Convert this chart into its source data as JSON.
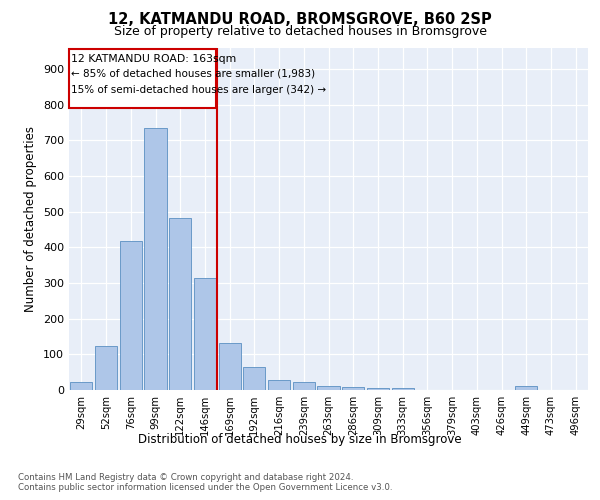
{
  "title1": "12, KATMANDU ROAD, BROMSGROVE, B60 2SP",
  "title2": "Size of property relative to detached houses in Bromsgrove",
  "xlabel": "Distribution of detached houses by size in Bromsgrove",
  "ylabel": "Number of detached properties",
  "categories": [
    "29sqm",
    "52sqm",
    "76sqm",
    "99sqm",
    "122sqm",
    "146sqm",
    "169sqm",
    "192sqm",
    "216sqm",
    "239sqm",
    "263sqm",
    "286sqm",
    "309sqm",
    "333sqm",
    "356sqm",
    "379sqm",
    "403sqm",
    "426sqm",
    "449sqm",
    "473sqm",
    "496sqm"
  ],
  "values": [
    22,
    122,
    418,
    735,
    482,
    315,
    133,
    65,
    28,
    22,
    12,
    8,
    5,
    5,
    0,
    0,
    0,
    0,
    10,
    0,
    0
  ],
  "bar_color": "#aec6e8",
  "bar_edge_color": "#5a8fc2",
  "vline_x": 5.5,
  "vline_color": "#cc0000",
  "annotation_title": "12 KATMANDU ROAD: 163sqm",
  "annotation_line1": "← 85% of detached houses are smaller (1,983)",
  "annotation_line2": "15% of semi-detached houses are larger (342) →",
  "annotation_box_color": "#cc0000",
  "ylim": [
    0,
    960
  ],
  "yticks": [
    0,
    100,
    200,
    300,
    400,
    500,
    600,
    700,
    800,
    900
  ],
  "footer1": "Contains HM Land Registry data © Crown copyright and database right 2024.",
  "footer2": "Contains public sector information licensed under the Open Government Licence v3.0.",
  "background_color": "#e8eef8"
}
